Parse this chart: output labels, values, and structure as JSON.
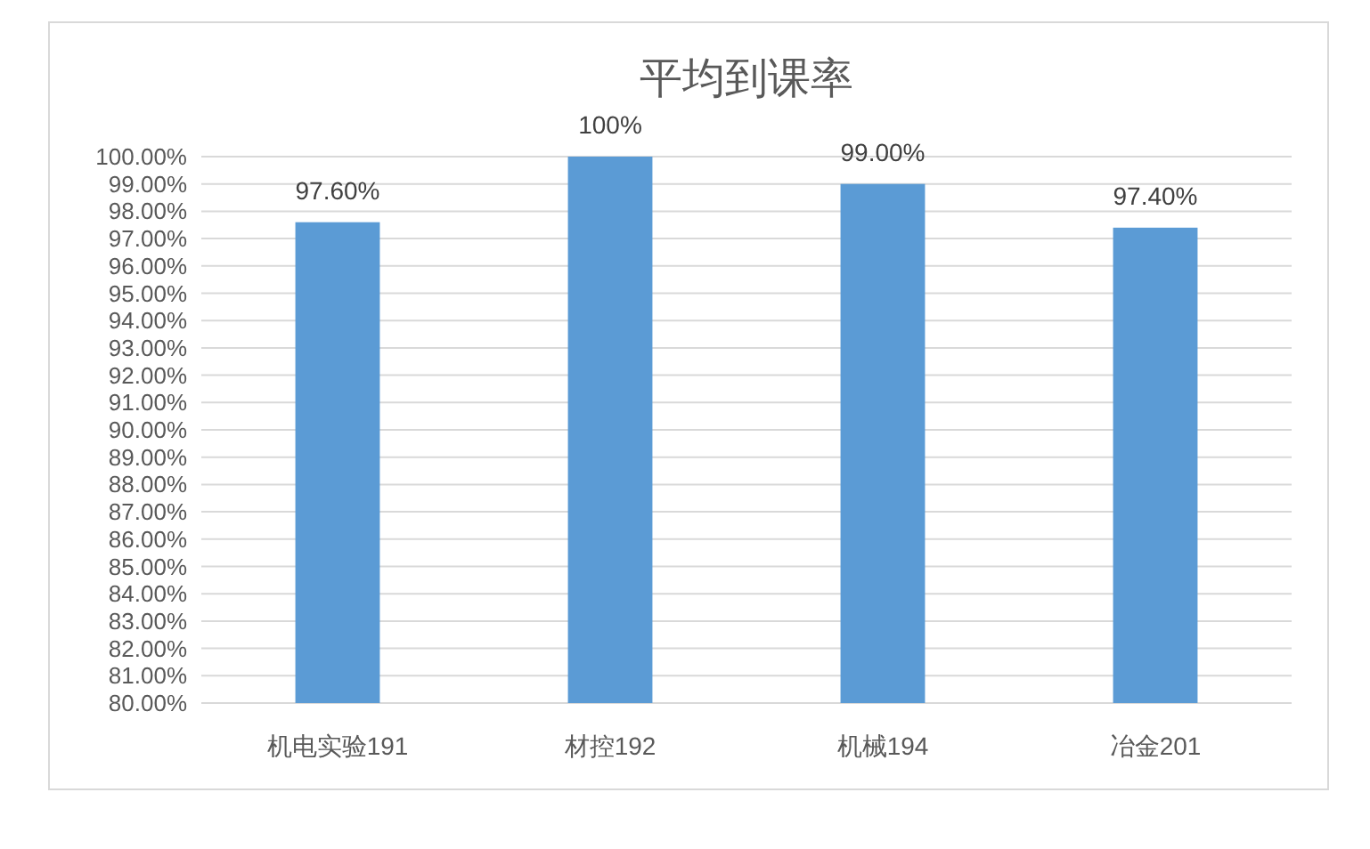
{
  "chart_data": {
    "type": "bar",
    "title": "平均到课率",
    "categories": [
      "机电实验191",
      "材控192",
      "机械194",
      "冶金201"
    ],
    "values": [
      97.6,
      100,
      99,
      97.4
    ],
    "value_labels": [
      "97.60%",
      "100%",
      "99.00%",
      "97.40%"
    ],
    "color": "#5b9bd5",
    "ylim": [
      80,
      100
    ],
    "yticks": [
      {
        "value": 80,
        "label": "80.00%"
      },
      {
        "value": 81,
        "label": "81.00%"
      },
      {
        "value": 82,
        "label": "82.00%"
      },
      {
        "value": 83,
        "label": "83.00%"
      },
      {
        "value": 84,
        "label": "84.00%"
      },
      {
        "value": 85,
        "label": "85.00%"
      },
      {
        "value": 86,
        "label": "86.00%"
      },
      {
        "value": 87,
        "label": "87.00%"
      },
      {
        "value": 88,
        "label": "88.00%"
      },
      {
        "value": 89,
        "label": "89.00%"
      },
      {
        "value": 90,
        "label": "90.00%"
      },
      {
        "value": 91,
        "label": "91.00%"
      },
      {
        "value": 92,
        "label": "92.00%"
      },
      {
        "value": 93,
        "label": "93.00%"
      },
      {
        "value": 94,
        "label": "94.00%"
      },
      {
        "value": 95,
        "label": "95.00%"
      },
      {
        "value": 96,
        "label": "96.00%"
      },
      {
        "value": 97,
        "label": "97.00%"
      },
      {
        "value": 98,
        "label": "98.00%"
      },
      {
        "value": 99,
        "label": "99.00%"
      },
      {
        "value": 100,
        "label": "100.00%"
      }
    ],
    "grid": "y"
  }
}
